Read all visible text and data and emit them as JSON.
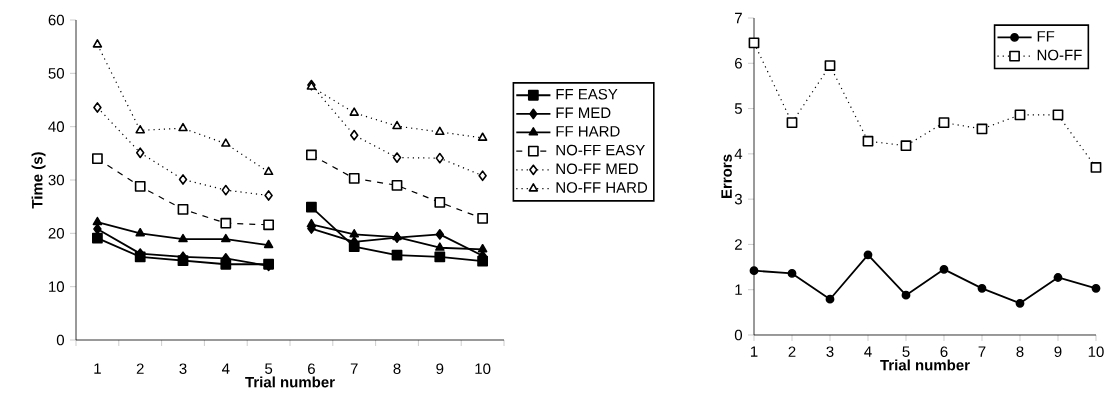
{
  "chart_data": [
    {
      "type": "line",
      "xlabel": "Trial number",
      "ylabel": "Time (s)",
      "categories": [
        "1",
        "2",
        "3",
        "4",
        "5",
        "6",
        "7",
        "8",
        "9",
        "10"
      ],
      "ylim": [
        0,
        60
      ],
      "yticks": [
        0,
        10,
        20,
        30,
        40,
        50,
        60
      ],
      "legend": "right",
      "series": [
        {
          "name": "FF EASY",
          "color": "#000000",
          "marker": "square",
          "line_style": "solid",
          "values": [
            19.1,
            15.6,
            14.9,
            14.2,
            14.2,
            null,
            null,
            null,
            null,
            null
          ]
        },
        {
          "name": "FF MED",
          "color": "#000000",
          "marker": "diamond",
          "line_style": "solid",
          "values": [
            20.8,
            16.2,
            15.6,
            15.3,
            13.9,
            null,
            null,
            null,
            null,
            null
          ]
        },
        {
          "name": "FF HARD",
          "color": "#000000",
          "marker": "triangle",
          "line_style": "solid",
          "values": [
            22.1,
            20.0,
            18.9,
            18.9,
            17.8,
            null,
            null,
            null,
            null,
            null
          ]
        },
        {
          "name": "NO-FF EASY",
          "color": "#000000",
          "marker": "square",
          "line_style": "dashed",
          "values": [
            34.0,
            28.8,
            24.5,
            21.9,
            21.6,
            null,
            null,
            null,
            null,
            null
          ]
        },
        {
          "name": "NO-FF MED",
          "color": "#000000",
          "marker": "diamond",
          "line_style": "dotted",
          "values": [
            43.6,
            35.1,
            30.1,
            28.1,
            27.1,
            null,
            null,
            null,
            null,
            null
          ]
        },
        {
          "name": "NO-FF HARD",
          "color": "#000000",
          "marker": "triangle",
          "line_style": "dotted",
          "values": [
            55.4,
            39.3,
            39.7,
            36.8,
            31.5,
            null,
            null,
            null,
            null,
            null
          ]
        },
        {
          "color": "#000000",
          "marker": "square",
          "line_style": "solid",
          "values": [
            null,
            null,
            null,
            null,
            null,
            24.9,
            17.5,
            15.9,
            15.6,
            14.8
          ]
        },
        {
          "color": "#000000",
          "marker": "diamond",
          "line_style": "solid",
          "values": [
            null,
            null,
            null,
            null,
            null,
            20.9,
            18.4,
            19.2,
            19.8,
            15.8
          ]
        },
        {
          "color": "#000000",
          "marker": "triangle",
          "line_style": "solid",
          "values": [
            null,
            null,
            null,
            null,
            null,
            21.7,
            19.8,
            19.3,
            17.3,
            17.0
          ]
        },
        {
          "color": "#000000",
          "marker": "square",
          "line_style": "dashed",
          "values": [
            null,
            null,
            null,
            null,
            null,
            34.7,
            30.3,
            29.0,
            25.8,
            22.8
          ]
        },
        {
          "color": "#000000",
          "marker": "diamond",
          "line_style": "dotted",
          "values": [
            null,
            null,
            null,
            null,
            null,
            47.8,
            38.4,
            34.2,
            34.1,
            30.8
          ]
        },
        {
          "color": "#000000",
          "marker": "triangle",
          "line_style": "dotted",
          "values": [
            null,
            null,
            null,
            null,
            null,
            47.5,
            42.6,
            40.1,
            39.0,
            37.9
          ]
        }
      ]
    },
    {
      "type": "line",
      "xlabel": "Trial number",
      "ylabel": "Errors",
      "categories": [
        "1",
        "2",
        "3",
        "4",
        "5",
        "6",
        "7",
        "8",
        "9",
        "10"
      ],
      "ylim": [
        0,
        7
      ],
      "yticks": [
        0,
        1,
        2,
        3,
        4,
        5,
        6,
        7
      ],
      "legend": "top right",
      "series": [
        {
          "name": "FF",
          "color": "#000000",
          "marker": "circle",
          "line_style": "solid",
          "values": [
            1.42,
            1.36,
            0.79,
            1.77,
            0.88,
            1.45,
            1.03,
            0.7,
            1.27,
            1.03
          ]
        },
        {
          "name": "NO-FF",
          "color": "#000000",
          "marker": "square",
          "line_style": "dotted",
          "values": [
            6.45,
            4.69,
            5.95,
            4.28,
            4.18,
            4.69,
            4.55,
            4.86,
            4.86,
            3.7
          ]
        }
      ]
    }
  ]
}
